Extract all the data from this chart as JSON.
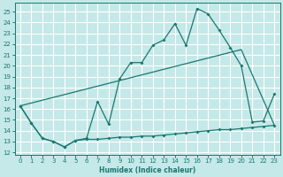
{
  "xlabel": "Humidex (Indice chaleur)",
  "bg_color": "#c5e8e8",
  "grid_color": "#ffffff",
  "line_color": "#1a7870",
  "xlim": [
    -0.5,
    23.5
  ],
  "ylim": [
    11.8,
    25.8
  ],
  "xticks": [
    0,
    1,
    2,
    3,
    4,
    5,
    6,
    7,
    8,
    9,
    10,
    11,
    12,
    13,
    14,
    15,
    16,
    17,
    18,
    19,
    20,
    21,
    22,
    23
  ],
  "yticks": [
    12,
    13,
    14,
    15,
    16,
    17,
    18,
    19,
    20,
    21,
    22,
    23,
    24,
    25
  ],
  "curve_x": [
    0,
    1,
    2,
    3,
    4,
    5,
    6,
    7,
    8,
    9,
    10,
    11,
    12,
    13,
    14,
    15,
    16,
    17,
    18,
    19,
    20,
    21,
    22,
    23
  ],
  "curve_y": [
    16.3,
    14.7,
    13.3,
    13.0,
    12.5,
    13.1,
    13.3,
    16.7,
    14.6,
    18.8,
    20.3,
    20.3,
    21.9,
    22.4,
    23.9,
    21.9,
    25.3,
    24.8,
    23.3,
    21.7,
    20.0,
    14.8,
    14.9,
    17.4
  ],
  "trend_x": [
    0,
    20,
    23
  ],
  "trend_y": [
    16.3,
    21.5,
    14.5
  ],
  "bottom_x": [
    0,
    1,
    2,
    3,
    4,
    5,
    6,
    7,
    8,
    9,
    10,
    11,
    12,
    13,
    14,
    15,
    16,
    17,
    18,
    19,
    20,
    21,
    22,
    23
  ],
  "bottom_y": [
    16.3,
    14.7,
    13.3,
    13.0,
    12.5,
    13.1,
    13.2,
    13.2,
    13.3,
    13.4,
    13.4,
    13.5,
    13.5,
    13.6,
    13.7,
    13.8,
    13.9,
    14.0,
    14.1,
    14.1,
    14.2,
    14.3,
    14.4,
    14.5
  ]
}
